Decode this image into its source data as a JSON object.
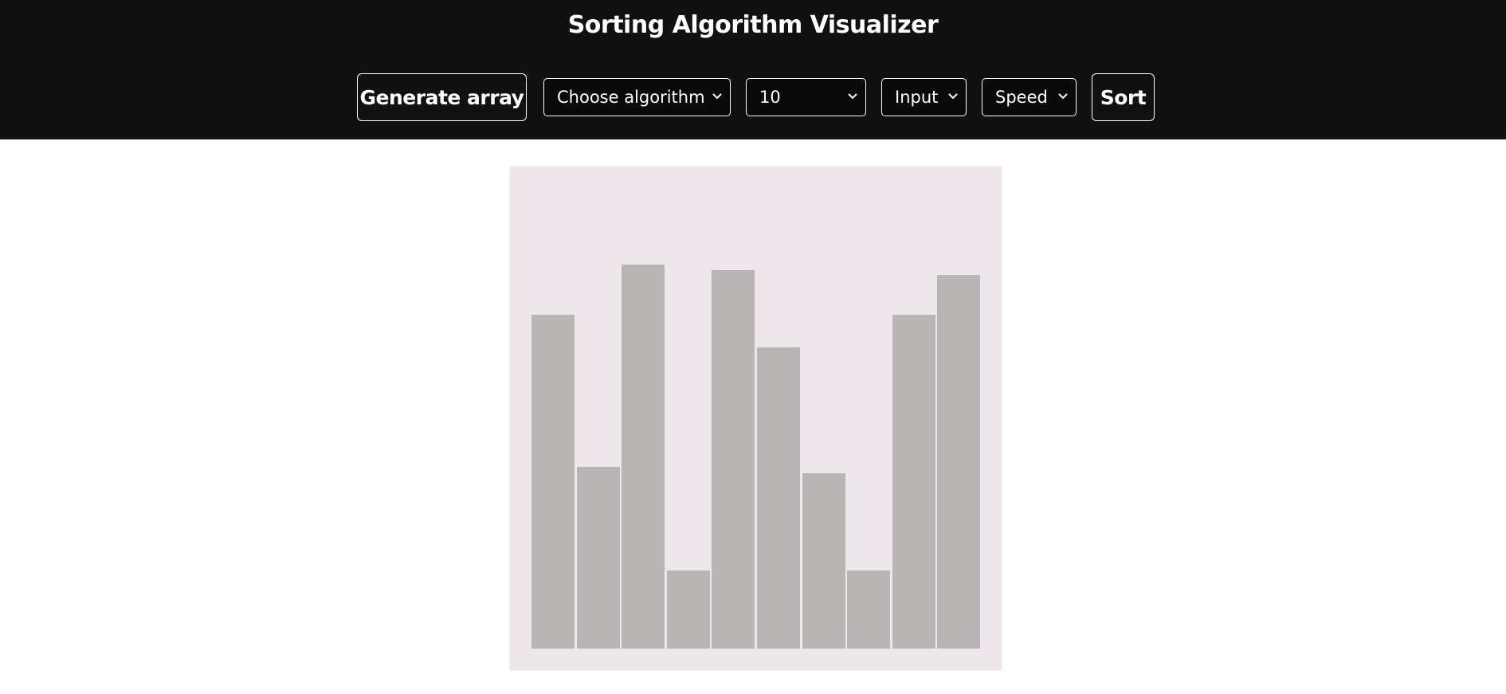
{
  "app": {
    "title": "Sorting Algorithm Visualizer"
  },
  "toolbar": {
    "generate_label": "Generate array",
    "algorithm_select": "Choose algorithm",
    "size_select": "10",
    "input_select": "Input",
    "speed_select": "Speed",
    "sort_label": "Sort"
  },
  "colors": {
    "header_bg": "#111111",
    "canvas_bg": "#ede6ea",
    "bar": "#bab5b5"
  },
  "icons": {
    "dropdown": "chevron-down-icon"
  },
  "array": {
    "values": [
      348,
      189,
      400,
      81,
      394,
      314,
      183,
      81,
      348,
      389
    ],
    "max": 420
  }
}
